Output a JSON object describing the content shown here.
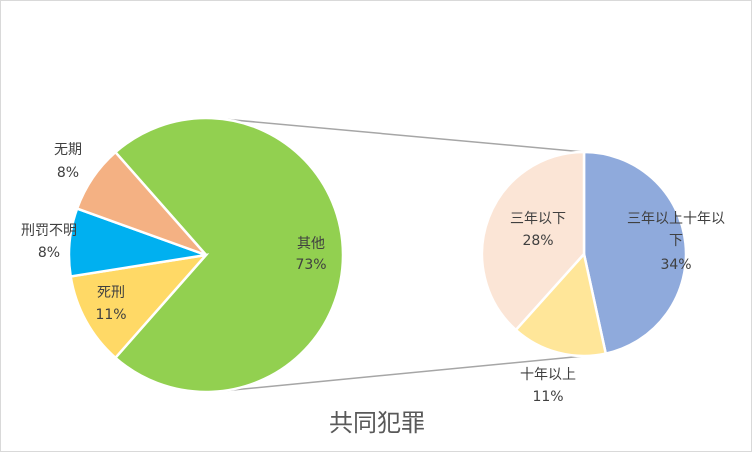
{
  "chart_data": {
    "type": "pie-of-pie",
    "title": "共同犯罪",
    "primary": {
      "slices": [
        {
          "label": "其他",
          "value": 73,
          "pct_label": "73%",
          "color": "#92d050"
        },
        {
          "label": "死刑",
          "value": 11,
          "pct_label": "11%",
          "color": "#ffd966"
        },
        {
          "label": "刑罚不明",
          "value": 8,
          "pct_label": "8%",
          "color": "#00b0f0"
        },
        {
          "label": "无期",
          "value": 8,
          "pct_label": "8%",
          "color": "#f4b183"
        }
      ]
    },
    "secondary": {
      "expands": "其他",
      "slices": [
        {
          "label": "三年以上十年以下",
          "value": 34,
          "pct_label": "34%",
          "color": "#8faadc"
        },
        {
          "label": "十年以上",
          "value": 11,
          "pct_label": "11%",
          "color": "#ffe699"
        },
        {
          "label": "三年以下",
          "value": 28,
          "pct_label": "28%",
          "color": "#fbe5d6"
        }
      ]
    },
    "connector_color": "#a6a6a6"
  }
}
